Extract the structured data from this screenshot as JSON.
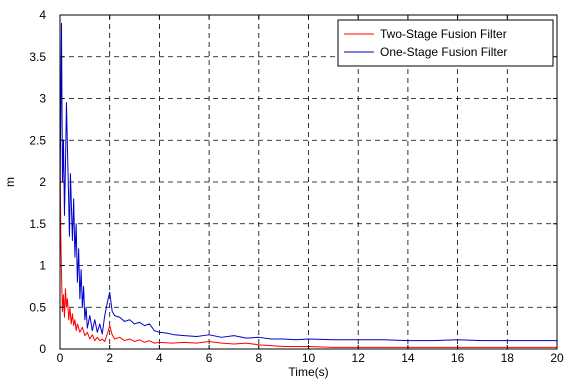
{
  "chart_data": {
    "type": "line",
    "title": "",
    "xlabel": "Time(s)",
    "ylabel": "m",
    "xlim": [
      0,
      20
    ],
    "ylim": [
      0,
      4
    ],
    "xticks": [
      0,
      2,
      4,
      6,
      8,
      10,
      12,
      14,
      16,
      18,
      20
    ],
    "yticks": [
      0,
      0.5,
      1,
      1.5,
      2,
      2.5,
      3,
      3.5,
      4
    ],
    "xtick_labels": [
      "0",
      "2",
      "4",
      "6",
      "8",
      "10",
      "12",
      "14",
      "16",
      "18",
      "20"
    ],
    "ytick_labels": [
      "0",
      "0.5",
      "1",
      "1.5",
      "2",
      "2.5",
      "3",
      "3.5",
      "4"
    ],
    "grid": true,
    "grid_style": "dashed",
    "legend_position": "top-right",
    "series": [
      {
        "name": "Two-Stage Fusion Filter",
        "color": "#ff0000",
        "points": [
          [
            0,
            2.45
          ],
          [
            0.03,
            1.4
          ],
          [
            0.06,
            0.9
          ],
          [
            0.1,
            0.45
          ],
          [
            0.14,
            0.65
          ],
          [
            0.18,
            0.38
          ],
          [
            0.22,
            0.72
          ],
          [
            0.26,
            0.5
          ],
          [
            0.3,
            0.6
          ],
          [
            0.35,
            0.35
          ],
          [
            0.4,
            0.5
          ],
          [
            0.45,
            0.3
          ],
          [
            0.5,
            0.42
          ],
          [
            0.55,
            0.28
          ],
          [
            0.6,
            0.35
          ],
          [
            0.65,
            0.22
          ],
          [
            0.7,
            0.3
          ],
          [
            0.8,
            0.2
          ],
          [
            0.9,
            0.26
          ],
          [
            1.0,
            0.16
          ],
          [
            1.1,
            0.2
          ],
          [
            1.2,
            0.12
          ],
          [
            1.3,
            0.17
          ],
          [
            1.4,
            0.1
          ],
          [
            1.5,
            0.14
          ],
          [
            1.6,
            0.1
          ],
          [
            1.7,
            0.12
          ],
          [
            1.8,
            0.09
          ],
          [
            1.9,
            0.18
          ],
          [
            2.0,
            0.28
          ],
          [
            2.1,
            0.17
          ],
          [
            2.2,
            0.12
          ],
          [
            2.4,
            0.14
          ],
          [
            2.6,
            0.1
          ],
          [
            2.8,
            0.12
          ],
          [
            3.0,
            0.09
          ],
          [
            3.2,
            0.11
          ],
          [
            3.4,
            0.08
          ],
          [
            3.6,
            0.1
          ],
          [
            3.8,
            0.07
          ],
          [
            4.0,
            0.08
          ],
          [
            4.5,
            0.07
          ],
          [
            5.0,
            0.08
          ],
          [
            5.5,
            0.07
          ],
          [
            6.0,
            0.09
          ],
          [
            6.5,
            0.07
          ],
          [
            7.0,
            0.06
          ],
          [
            7.5,
            0.07
          ],
          [
            8.0,
            0.05
          ],
          [
            8.5,
            0.04
          ],
          [
            9.0,
            0.03
          ],
          [
            9.5,
            0.03
          ],
          [
            10,
            0.03
          ],
          [
            11,
            0.02
          ],
          [
            12,
            0.02
          ],
          [
            13,
            0.02
          ],
          [
            14,
            0.02
          ],
          [
            15,
            0.02
          ],
          [
            16,
            0.02
          ],
          [
            17,
            0.02
          ],
          [
            18,
            0.02
          ],
          [
            19,
            0.02
          ],
          [
            20,
            0.02
          ]
        ]
      },
      {
        "name": "One-Stage Fusion Filter",
        "color": "#0000cc",
        "points": [
          [
            0,
            1.8
          ],
          [
            0.03,
            2.8
          ],
          [
            0.06,
            3.9
          ],
          [
            0.1,
            2.0
          ],
          [
            0.14,
            2.5
          ],
          [
            0.18,
            1.6
          ],
          [
            0.22,
            2.2
          ],
          [
            0.26,
            2.95
          ],
          [
            0.3,
            2.4
          ],
          [
            0.34,
            1.9
          ],
          [
            0.38,
            1.35
          ],
          [
            0.42,
            2.1
          ],
          [
            0.46,
            1.7
          ],
          [
            0.5,
            1.3
          ],
          [
            0.55,
            1.8
          ],
          [
            0.6,
            1.1
          ],
          [
            0.65,
            1.5
          ],
          [
            0.7,
            0.8
          ],
          [
            0.75,
            1.2
          ],
          [
            0.8,
            0.6
          ],
          [
            0.85,
            0.95
          ],
          [
            0.9,
            0.5
          ],
          [
            0.95,
            0.75
          ],
          [
            1.0,
            0.35
          ],
          [
            1.05,
            0.5
          ],
          [
            1.1,
            0.25
          ],
          [
            1.2,
            0.4
          ],
          [
            1.3,
            0.22
          ],
          [
            1.4,
            0.35
          ],
          [
            1.5,
            0.2
          ],
          [
            1.6,
            0.3
          ],
          [
            1.7,
            0.18
          ],
          [
            1.8,
            0.4
          ],
          [
            1.9,
            0.55
          ],
          [
            2.0,
            0.68
          ],
          [
            2.1,
            0.45
          ],
          [
            2.2,
            0.4
          ],
          [
            2.4,
            0.38
          ],
          [
            2.6,
            0.33
          ],
          [
            2.8,
            0.35
          ],
          [
            3.0,
            0.3
          ],
          [
            3.2,
            0.32
          ],
          [
            3.4,
            0.28
          ],
          [
            3.6,
            0.3
          ],
          [
            3.8,
            0.22
          ],
          [
            4.0,
            0.2
          ],
          [
            4.3,
            0.19
          ],
          [
            4.6,
            0.17
          ],
          [
            5.0,
            0.16
          ],
          [
            5.5,
            0.15
          ],
          [
            6.0,
            0.17
          ],
          [
            6.5,
            0.14
          ],
          [
            7.0,
            0.16
          ],
          [
            7.5,
            0.13
          ],
          [
            8.0,
            0.14
          ],
          [
            8.5,
            0.12
          ],
          [
            9.0,
            0.12
          ],
          [
            9.5,
            0.11
          ],
          [
            10,
            0.12
          ],
          [
            11,
            0.11
          ],
          [
            12,
            0.11
          ],
          [
            13,
            0.11
          ],
          [
            14,
            0.1
          ],
          [
            15,
            0.1
          ],
          [
            16,
            0.11
          ],
          [
            17,
            0.1
          ],
          [
            18,
            0.1
          ],
          [
            19,
            0.1
          ],
          [
            20,
            0.1
          ]
        ]
      }
    ]
  }
}
